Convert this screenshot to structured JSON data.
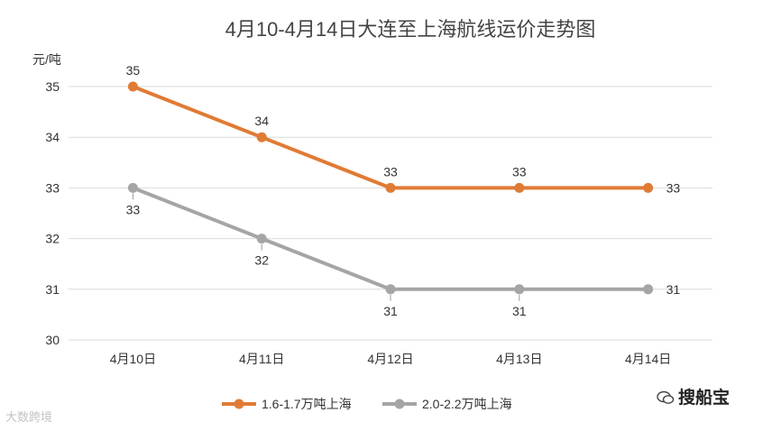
{
  "chart_data": {
    "type": "line",
    "title": "4月10-4月14日大连至上海航线运价走势图",
    "ylabel": "元/吨",
    "categories": [
      "4月10日",
      "4月11日",
      "4月12日",
      "4月13日",
      "4月14日"
    ],
    "ylim": [
      30,
      35
    ],
    "yticks": [
      30,
      31,
      32,
      33,
      34,
      35
    ],
    "grid": true,
    "legend": "bottom",
    "series": [
      {
        "name": "1.6-1.7万吨上海",
        "values": [
          35,
          34,
          33,
          33,
          33
        ],
        "color": "#e07b35"
      },
      {
        "name": "2.0-2.2万吨上海",
        "values": [
          33,
          32,
          31,
          31,
          31
        ],
        "color": "#a5a5a5"
      }
    ]
  },
  "watermarks": {
    "left": "大数跨境",
    "right": "搜船宝"
  }
}
